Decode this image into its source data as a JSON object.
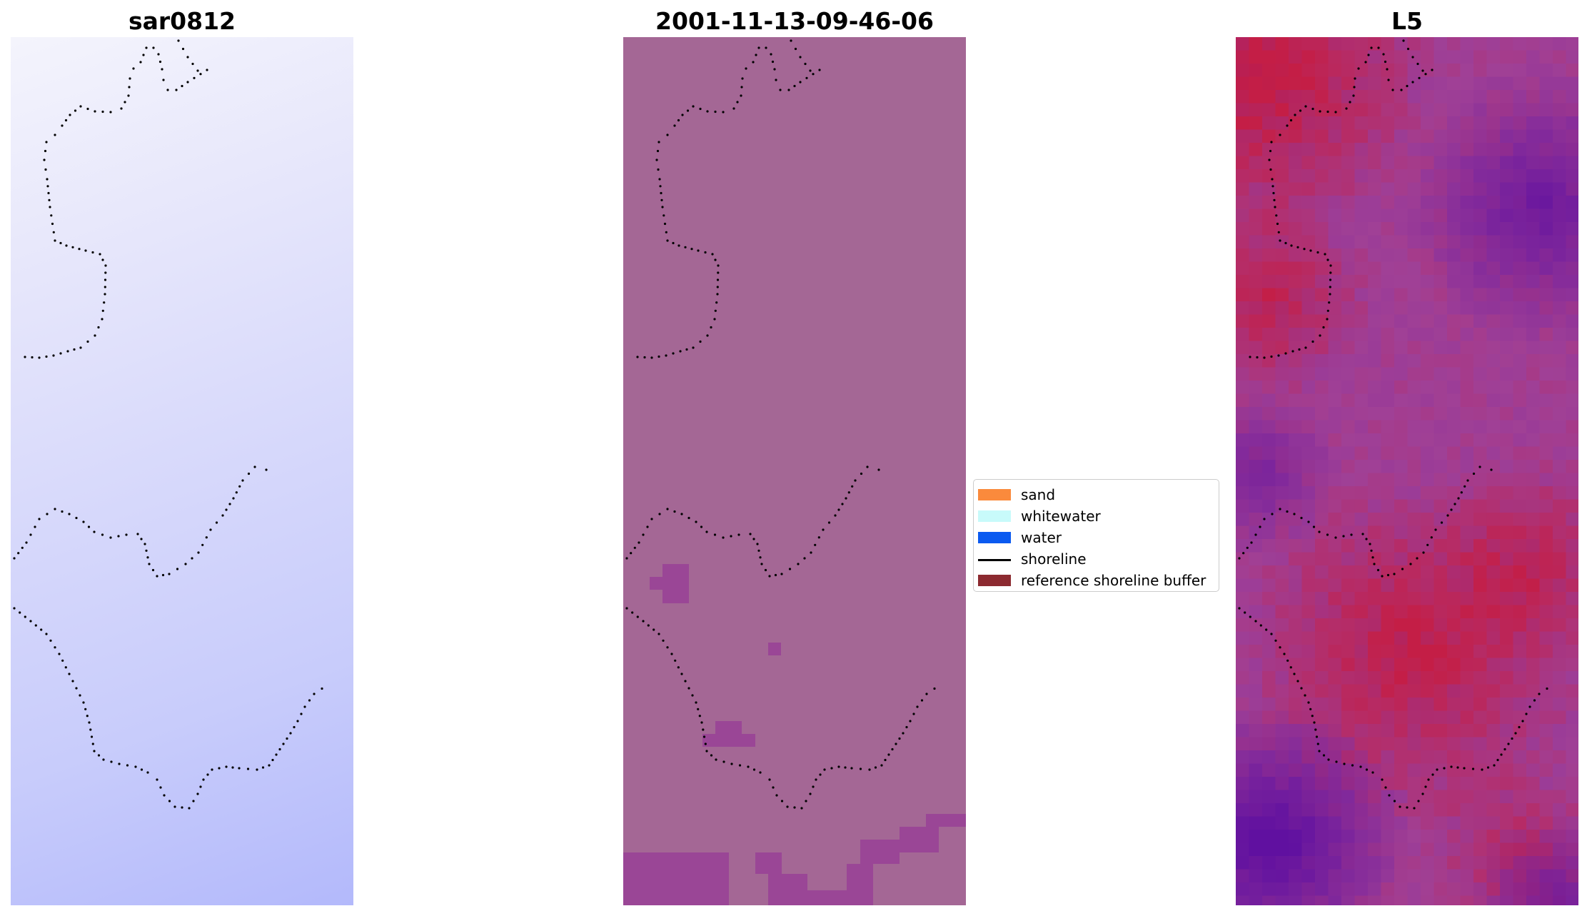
{
  "panels": [
    {
      "title": "sar0812"
    },
    {
      "title": "2001-11-13-09-46-06"
    },
    {
      "title": "L5"
    }
  ],
  "legend": {
    "items": [
      {
        "label": "sand",
        "color": "#fa8a3c"
      },
      {
        "label": "whitewater",
        "color": "#c8fafa"
      },
      {
        "label": "water",
        "color": "#0a5af0"
      },
      {
        "label": "shoreline",
        "color": "#000000"
      },
      {
        "label": "reference shoreline buffer",
        "color": "#8c2a30"
      }
    ]
  },
  "colors": {
    "classification_background": "#a46795",
    "classification_patch": "#9a4696",
    "shoreline_points": "#000000"
  }
}
